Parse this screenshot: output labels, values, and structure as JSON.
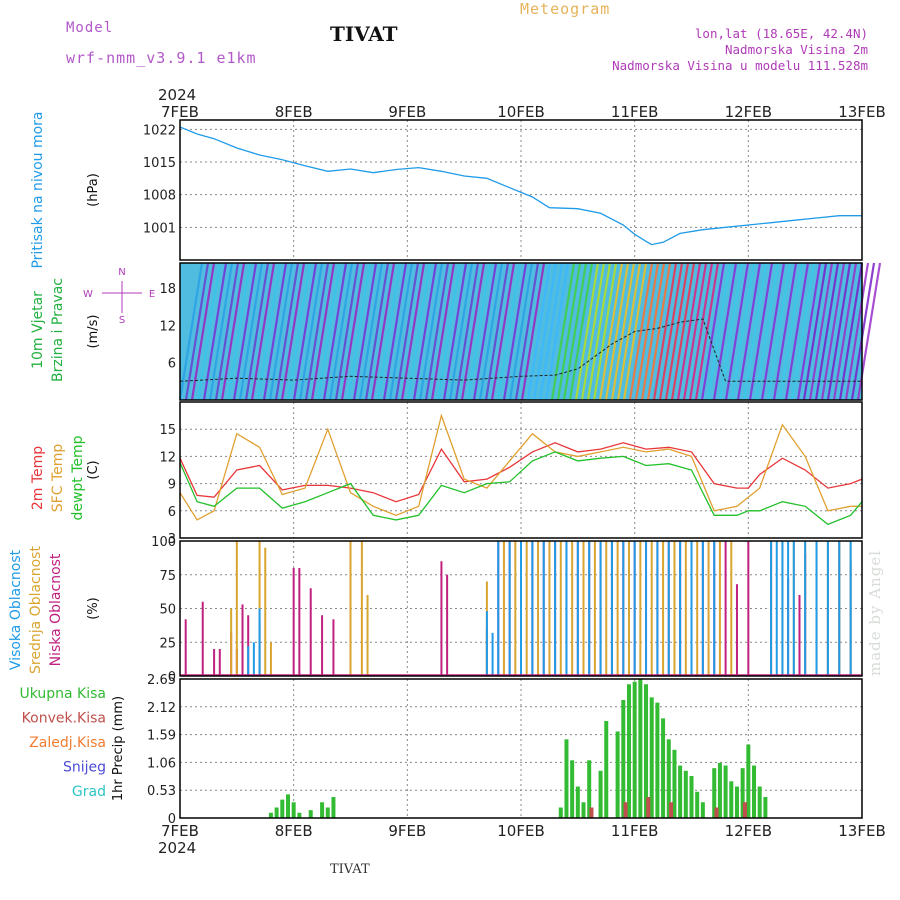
{
  "header": {
    "model_label": "Model",
    "model_name": "wrf-nmm_v3.9.1 e1km",
    "station": "TIVAT",
    "title": "Meteogram",
    "lonlat": "lon,lat (18.65E, 42.4N)",
    "elev": "Nadmorska Visina 2m",
    "elev_model": "Nadmorska Visina u modelu 111.528m"
  },
  "footer": {
    "station": "TIVAT",
    "made_by": "made by Angel"
  },
  "colors": {
    "pressure": "#1f9be8",
    "temp2m": "#e8363a",
    "sfc": "#e0a030",
    "dewpt": "#22c02a",
    "high_cloud": "#1f9be8",
    "mid_cloud": "#d9a530",
    "low_cloud": "#c0207f",
    "precip_total": "#33bb33",
    "precip_conv": "#c0504d",
    "label_purple": "#b03bb8"
  },
  "time_axis": {
    "year": "2024",
    "ticks": [
      "7FEB",
      "8FEB",
      "9FEB",
      "10FEB",
      "11FEB",
      "12FEB",
      "13FEB"
    ]
  },
  "chart_data": [
    {
      "type": "line",
      "panel": "pressure",
      "ylabel_lines": [
        "Pritisak na nivou mora"
      ],
      "unit": "(hPa)",
      "yticks": [
        "1022",
        "1015",
        "1008",
        "1001"
      ],
      "ylim": [
        994,
        1024
      ],
      "x_days": [
        0,
        0.15,
        0.3,
        0.5,
        0.7,
        0.9,
        1.1,
        1.3,
        1.5,
        1.7,
        1.9,
        2.1,
        2.3,
        2.5,
        2.7,
        2.9,
        3.1,
        3.25,
        3.5,
        3.7,
        3.9,
        4.0,
        4.1,
        4.15,
        4.25,
        4.4,
        4.6,
        4.8,
        5.0,
        5.2,
        5.4,
        5.6,
        5.8,
        6.0
      ],
      "series": [
        {
          "values": [
            1022.5,
            1021,
            1020,
            1018,
            1016.5,
            1015.5,
            1014.2,
            1013,
            1013.5,
            1012.7,
            1013.4,
            1013.8,
            1013,
            1012,
            1011.5,
            1009.5,
            1007.5,
            1005.2,
            1005,
            1004,
            1001.5,
            999.5,
            998,
            997.3,
            997.8,
            999.7,
            1000.5,
            1001,
            1001.5,
            1002,
            1002.5,
            1003,
            1003.5,
            1003.5
          ]
        }
      ]
    },
    {
      "type": "line",
      "panel": "wind",
      "ylabel_lines": [
        "10m Vjetar",
        "Brzina i Pravac"
      ],
      "unit": "(m/s)",
      "compass": [
        "N",
        "E",
        "S",
        "W"
      ],
      "yticks": [
        "18",
        "12",
        "6"
      ],
      "ylim": [
        0,
        22
      ],
      "x_days": [
        0,
        0.5,
        1,
        1.5,
        2,
        2.5,
        3,
        3.3,
        3.5,
        3.8,
        4.0,
        4.2,
        4.4,
        4.6,
        4.8,
        5.0,
        5.5,
        6
      ],
      "series": [
        {
          "values": [
            3,
            3.5,
            3.2,
            3.8,
            3.5,
            3.2,
            3.8,
            4,
            5,
            9,
            11,
            11.5,
            12.5,
            13,
            3,
            3,
            3,
            3
          ]
        }
      ]
    },
    {
      "type": "line",
      "panel": "temperature",
      "ylabel_lines": [
        "2m Temp",
        "SFC Temp",
        "dewpt Temp"
      ],
      "unit": "(C)",
      "yticks": [
        "15",
        "12",
        "9",
        "6",
        "3"
      ],
      "ylim": [
        3,
        18
      ],
      "x_days": [
        0,
        0.15,
        0.3,
        0.5,
        0.7,
        0.9,
        1.1,
        1.3,
        1.5,
        1.7,
        1.9,
        2.1,
        2.3,
        2.5,
        2.7,
        2.9,
        3.1,
        3.3,
        3.5,
        3.7,
        3.9,
        4.1,
        4.3,
        4.5,
        4.7,
        4.9,
        5.0,
        5.1,
        5.3,
        5.5,
        5.7,
        5.9,
        6.0
      ],
      "series": [
        {
          "name": "2m Temp",
          "values": [
            11.8,
            7.7,
            7.5,
            10.5,
            11.0,
            8.3,
            8.8,
            8.8,
            8.5,
            8.0,
            7.0,
            7.8,
            12.8,
            9.2,
            9.5,
            10.8,
            12.5,
            13.5,
            12.5,
            12.8,
            13.5,
            12.8,
            13.0,
            12.5,
            9.0,
            8.5,
            8.5,
            10.0,
            11.8,
            10.5,
            8.5,
            9.0,
            9.5
          ]
        },
        {
          "name": "SFC Temp",
          "values": [
            8.0,
            5.0,
            6.0,
            14.5,
            13.0,
            7.8,
            8.5,
            15.0,
            8.0,
            6.5,
            5.5,
            6.5,
            16.5,
            9.5,
            8.5,
            11.5,
            14.5,
            12.5,
            12.0,
            12.5,
            13.0,
            12.5,
            12.8,
            12.0,
            6.0,
            6.5,
            7.5,
            8.5,
            15.5,
            12.0,
            6.0,
            6.5,
            6.5
          ]
        },
        {
          "name": "dewpt Temp",
          "values": [
            11.3,
            7.0,
            6.5,
            8.5,
            8.5,
            6.3,
            7.0,
            8.0,
            9.0,
            5.5,
            5.0,
            5.5,
            8.8,
            8.0,
            9.0,
            9.2,
            11.5,
            12.5,
            11.5,
            11.8,
            12.0,
            11.0,
            11.2,
            10.5,
            5.5,
            5.5,
            6.0,
            6.0,
            7.0,
            6.5,
            4.5,
            5.5,
            7.0
          ]
        }
      ]
    },
    {
      "type": "bar",
      "panel": "clouds",
      "ylabel_lines": [
        "Visoka Oblacnost",
        "Srednja Oblacnost",
        "Niska Oblacnost"
      ],
      "unit": "(%)",
      "yticks": [
        "100",
        "75",
        "50",
        "25",
        "0"
      ],
      "ylim": [
        0,
        100
      ],
      "series": [
        {
          "name": "Niska Oblacnost",
          "x_days": [
            0.05,
            0.2,
            0.3,
            0.35,
            0.45,
            0.5,
            0.55,
            0.6,
            0.7,
            1.0,
            1.05,
            1.15,
            1.25,
            1.35,
            1.5,
            2.3,
            2.35,
            2.7,
            2.8,
            2.9,
            3.0,
            3.1,
            3.2,
            3.3,
            3.4,
            3.5,
            3.6,
            3.7,
            3.8,
            3.9,
            4.0,
            4.1,
            4.2,
            4.3,
            4.4,
            4.5,
            4.6,
            4.7,
            4.8,
            4.9,
            5.0,
            5.2,
            5.35,
            5.45,
            5.5,
            5.6,
            5.7,
            5.8,
            5.9
          ],
          "values": [
            42,
            55,
            20,
            20,
            32,
            20,
            53,
            45,
            40,
            80,
            80,
            65,
            45,
            42,
            70,
            85,
            75,
            35,
            100,
            100,
            100,
            100,
            100,
            100,
            100,
            100,
            100,
            100,
            100,
            100,
            100,
            100,
            100,
            100,
            100,
            100,
            100,
            100,
            100,
            68,
            100,
            100,
            72,
            60,
            90,
            50,
            50,
            100,
            85
          ]
        },
        {
          "name": "Srednja Oblacnost",
          "x_days": [
            0.45,
            0.5,
            0.7,
            0.75,
            0.8,
            1.5,
            1.6,
            1.65,
            2.7,
            2.85,
            2.95,
            3.05,
            3.15,
            3.25,
            3.35,
            3.45,
            3.55,
            3.65,
            3.75,
            3.85,
            3.95,
            4.05,
            4.15,
            4.25,
            4.35,
            4.45,
            4.55,
            4.65,
            4.75,
            4.85,
            5.2,
            5.3,
            5.4,
            5.5,
            5.6,
            5.7,
            5.8,
            5.9
          ],
          "values": [
            50,
            100,
            100,
            95,
            25,
            100,
            100,
            60,
            70,
            100,
            100,
            100,
            100,
            100,
            100,
            100,
            100,
            100,
            100,
            100,
            100,
            100,
            100,
            100,
            100,
            100,
            100,
            100,
            100,
            100,
            100,
            100,
            100,
            100,
            100,
            100,
            100,
            100
          ]
        },
        {
          "name": "Visoka Oblacnost",
          "x_days": [
            0.6,
            0.65,
            0.7,
            2.7,
            2.75,
            2.8,
            2.9,
            3.0,
            3.1,
            3.2,
            3.3,
            3.4,
            3.5,
            3.6,
            3.7,
            3.8,
            3.9,
            4.0,
            4.1,
            4.2,
            4.3,
            4.4,
            4.5,
            4.6,
            4.7,
            5.2,
            5.25,
            5.3,
            5.35,
            5.4,
            5.5,
            5.6,
            5.7,
            5.8,
            5.9
          ],
          "values": [
            22,
            25,
            50,
            48,
            32,
            100,
            100,
            100,
            100,
            100,
            100,
            100,
            100,
            100,
            100,
            100,
            100,
            100,
            100,
            100,
            100,
            100,
            100,
            100,
            100,
            100,
            100,
            100,
            100,
            100,
            100,
            100,
            100,
            100,
            100
          ]
        }
      ]
    },
    {
      "type": "bar",
      "panel": "precipitation",
      "ylabel_lines": [
        "Ukupna Kisa",
        "Konvek.Kisa",
        "Zaledj.Kisa",
        "Snijeg",
        "Grad"
      ],
      "unit": "1hr Precip (mm)",
      "yticks": [
        "2.65",
        "2.12",
        "1.59",
        "1.06",
        "0.53",
        "0"
      ],
      "ylim": [
        0,
        2.65
      ],
      "series": [
        {
          "name": "Ukupna Kisa",
          "x_days": [
            0.8,
            0.85,
            0.9,
            0.95,
            1.0,
            1.05,
            1.15,
            1.25,
            1.3,
            1.35,
            3.35,
            3.4,
            3.45,
            3.5,
            3.55,
            3.6,
            3.7,
            3.75,
            3.85,
            3.9,
            3.95,
            4.0,
            4.05,
            4.1,
            4.15,
            4.2,
            4.25,
            4.3,
            4.35,
            4.4,
            4.45,
            4.5,
            4.55,
            4.6,
            4.7,
            4.75,
            4.8,
            4.85,
            4.9,
            4.95,
            5.0,
            5.05,
            5.1,
            5.15
          ],
          "values": [
            0.1,
            0.2,
            0.35,
            0.45,
            0.3,
            0.1,
            0.15,
            0.3,
            0.2,
            0.4,
            0.2,
            1.5,
            1.1,
            0.6,
            0.3,
            1.1,
            0.9,
            1.85,
            1.65,
            2.25,
            2.55,
            2.6,
            2.65,
            2.55,
            2.3,
            2.2,
            1.9,
            1.5,
            1.3,
            1.0,
            0.9,
            0.8,
            0.5,
            0.3,
            0.95,
            1.05,
            1.0,
            0.7,
            0.6,
            0.95,
            1.4,
            1.0,
            0.6,
            0.4
          ]
        },
        {
          "name": "Konvek.Kisa",
          "x_days": [
            3.62,
            3.92,
            4.12,
            4.32,
            4.72,
            4.97
          ],
          "values": [
            0.2,
            0.3,
            0.4,
            0.3,
            0.2,
            0.3
          ]
        }
      ]
    }
  ]
}
